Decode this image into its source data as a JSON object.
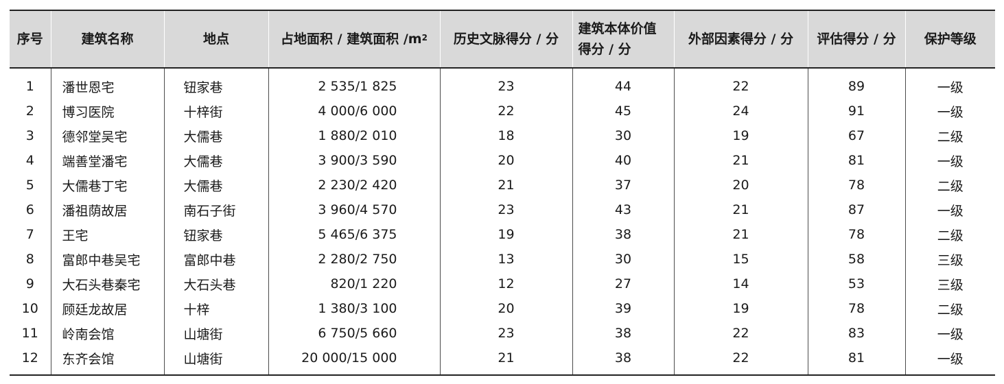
{
  "table": {
    "headers": {
      "no": "序号",
      "name": "建筑名称",
      "location": "地点",
      "area_prefix": "占地面积 / 建筑面积 /m",
      "area_sup": "2",
      "history": "历史文脉得分 / 分",
      "value_line1": "建筑本体价值",
      "value_line2": "得分 / 分",
      "external": "外部因素得分 / 分",
      "total": "评估得分 / 分",
      "level": "保护等级"
    },
    "rows": [
      {
        "no": "1",
        "name": "潘世恩宅",
        "location": "钮家巷",
        "area": "2 535/1 825",
        "history": "23",
        "value": "44",
        "external": "22",
        "total": "89",
        "level": "一级"
      },
      {
        "no": "2",
        "name": "博习医院",
        "location": "十梓街",
        "area": "4 000/6 000",
        "history": "22",
        "value": "45",
        "external": "24",
        "total": "91",
        "level": "一级"
      },
      {
        "no": "3",
        "name": "德邻堂吴宅",
        "location": "大儒巷",
        "area": "1 880/2 010",
        "history": "18",
        "value": "30",
        "external": "19",
        "total": "67",
        "level": "二级"
      },
      {
        "no": "4",
        "name": "端善堂潘宅",
        "location": "大儒巷",
        "area": "3 900/3 590",
        "history": "20",
        "value": "40",
        "external": "21",
        "total": "81",
        "level": "一级"
      },
      {
        "no": "5",
        "name": "大儒巷丁宅",
        "location": "大儒巷",
        "area": "2 230/2 420",
        "history": "21",
        "value": "37",
        "external": "20",
        "total": "78",
        "level": "二级"
      },
      {
        "no": "6",
        "name": "潘祖荫故居",
        "location": "南石子街",
        "area": "3 960/4 570",
        "history": "23",
        "value": "43",
        "external": "21",
        "total": "87",
        "level": "一级"
      },
      {
        "no": "7",
        "name": "王宅",
        "location": "钮家巷",
        "area": "5 465/6 375",
        "history": "19",
        "value": "38",
        "external": "21",
        "total": "78",
        "level": "二级"
      },
      {
        "no": "8",
        "name": "富郎中巷吴宅",
        "location": "富郎中巷",
        "area": "2 280/2 750",
        "history": "13",
        "value": "30",
        "external": "15",
        "total": "58",
        "level": "三级"
      },
      {
        "no": "9",
        "name": "大石头巷秦宅",
        "location": "大石头巷",
        "area": "820/1 220",
        "history": "12",
        "value": "27",
        "external": "14",
        "total": "53",
        "level": "三级"
      },
      {
        "no": "10",
        "name": "顾廷龙故居",
        "location": "十梓",
        "area": "1 380/3 100",
        "history": "20",
        "value": "39",
        "external": "19",
        "total": "78",
        "level": "二级"
      },
      {
        "no": "11",
        "name": "岭南会馆",
        "location": "山塘街",
        "area": "6 750/5 660",
        "history": "23",
        "value": "38",
        "external": "22",
        "total": "83",
        "level": "一级"
      },
      {
        "no": "12",
        "name": "东齐会馆",
        "location": "山塘街",
        "area": "20 000/15 000",
        "history": "21",
        "value": "38",
        "external": "22",
        "total": "81",
        "level": "一级"
      }
    ]
  }
}
